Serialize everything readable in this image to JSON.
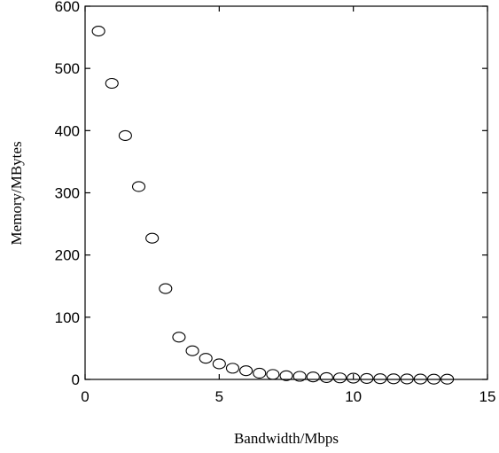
{
  "chart_data": {
    "type": "scatter",
    "title": "",
    "xlabel": "Bandwidth/Mbps",
    "ylabel": "Memory/MBytes",
    "xlim": [
      0,
      15
    ],
    "ylim": [
      0,
      600
    ],
    "xticks": [
      "0",
      "5",
      "10",
      "15"
    ],
    "yticks": [
      "0",
      "100",
      "200",
      "300",
      "400",
      "500",
      "600"
    ],
    "grid": false,
    "marker": "open-circle",
    "series": [
      {
        "x": [
          0.5,
          1.0,
          1.5,
          2.0,
          2.5,
          3.0,
          3.5,
          4.0,
          4.5,
          5.0,
          5.5,
          6.0,
          6.5,
          7.0,
          7.5,
          8.0,
          8.5,
          9.0,
          9.5,
          10.0,
          10.5,
          11.0,
          11.5,
          12.0,
          12.5,
          13.0,
          13.5
        ],
        "y": [
          560,
          476,
          392,
          310,
          227,
          146,
          68,
          46,
          34,
          25,
          18,
          14,
          10,
          8,
          6,
          5,
          4,
          3,
          2.5,
          2,
          1.5,
          1.2,
          1,
          0.8,
          0.6,
          0.5,
          0.4
        ]
      }
    ]
  }
}
